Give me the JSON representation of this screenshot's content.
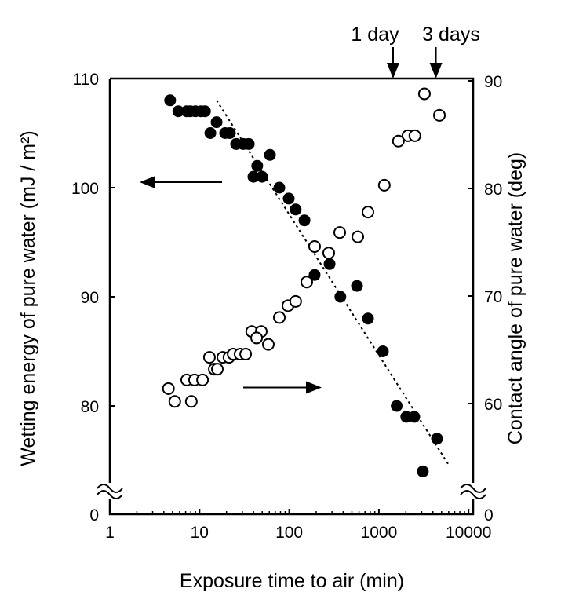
{
  "chart_data": {
    "type": "scatter",
    "xlabel": "Exposure time to air (min)",
    "ylabel_left": "Wetting energy of pure water (mJ / m²)",
    "ylabel_right": "Contact angle of pure water (deg)",
    "x_scale": "log",
    "xlim": [
      1,
      10000
    ],
    "x_ticks": [
      "1",
      "10",
      "100",
      "1000",
      "10000"
    ],
    "ylim_left": [
      0,
      110
    ],
    "y_ticks_left": [
      "0",
      "80",
      "90",
      "100",
      "110"
    ],
    "ylim_right": [
      0,
      90
    ],
    "y_ticks_right": [
      "0",
      "60",
      "70",
      "80",
      "90"
    ],
    "axis_break": true,
    "grid": false,
    "annotations": [
      {
        "text": "1 day",
        "x": 1440
      },
      {
        "text": "3 days",
        "x": 4320
      }
    ],
    "series": [
      {
        "marker": "filled-circle",
        "axis": "left",
        "points": [
          [
            4.7,
            108
          ],
          [
            5.8,
            107
          ],
          [
            7.2,
            107
          ],
          [
            7.9,
            107
          ],
          [
            9.0,
            107
          ],
          [
            10.4,
            107
          ],
          [
            11.5,
            107
          ],
          [
            13.2,
            105
          ],
          [
            15.5,
            106
          ],
          [
            19.3,
            105
          ],
          [
            21.8,
            105
          ],
          [
            25.6,
            104
          ],
          [
            30.7,
            104
          ],
          [
            35.4,
            104
          ],
          [
            61,
            103
          ],
          [
            44,
            102
          ],
          [
            39.9,
            101
          ],
          [
            49.8,
            101
          ],
          [
            77.6,
            100
          ],
          [
            98.8,
            99
          ],
          [
            118,
            98
          ],
          [
            148,
            97
          ],
          [
            282,
            93
          ],
          [
            192,
            92
          ],
          [
            570,
            91
          ],
          [
            372,
            90
          ],
          [
            756,
            88
          ],
          [
            1108,
            85
          ],
          [
            1580,
            80
          ],
          [
            2020,
            79
          ],
          [
            2480,
            79
          ],
          [
            4450,
            77
          ],
          [
            3090,
            74
          ]
        ]
      },
      {
        "marker": "open-circle",
        "axis": "right",
        "points": [
          [
            4.5,
            61.4
          ],
          [
            5.3,
            60.2
          ],
          [
            8.1,
            60.2
          ],
          [
            7.2,
            62.2
          ],
          [
            8.8,
            62.2
          ],
          [
            10.8,
            62.2
          ],
          [
            12.9,
            64.3
          ],
          [
            14.6,
            63.2
          ],
          [
            15.8,
            63.2
          ],
          [
            18.2,
            64.3
          ],
          [
            21.3,
            64.3
          ],
          [
            23.7,
            64.6
          ],
          [
            28.3,
            64.6
          ],
          [
            32.7,
            64.6
          ],
          [
            38.2,
            66.7
          ],
          [
            48.8,
            66.7
          ],
          [
            43.3,
            66.1
          ],
          [
            58.5,
            65.5
          ],
          [
            77.6,
            68
          ],
          [
            96.8,
            69.1
          ],
          [
            118,
            69.5
          ],
          [
            157,
            71.3
          ],
          [
            192,
            74.6
          ],
          [
            276,
            74
          ],
          [
            366,
            75.9
          ],
          [
            582,
            75.5
          ],
          [
            756,
            77.8
          ],
          [
            1150,
            80.3
          ],
          [
            1650,
            84.4
          ],
          [
            2110,
            84.9
          ],
          [
            2520,
            84.9
          ],
          [
            3220,
            88.8
          ],
          [
            4730,
            86.8
          ]
        ]
      }
    ],
    "trend_line": {
      "style": "dotted",
      "axis": "left",
      "from": [
        15.5,
        108
      ],
      "to": [
        5900,
        74.7
      ]
    },
    "direction_arrows": [
      {
        "points_to": "left",
        "level_left": 100.5
      },
      {
        "points_to": "right",
        "level_right": 61.5
      }
    ]
  }
}
